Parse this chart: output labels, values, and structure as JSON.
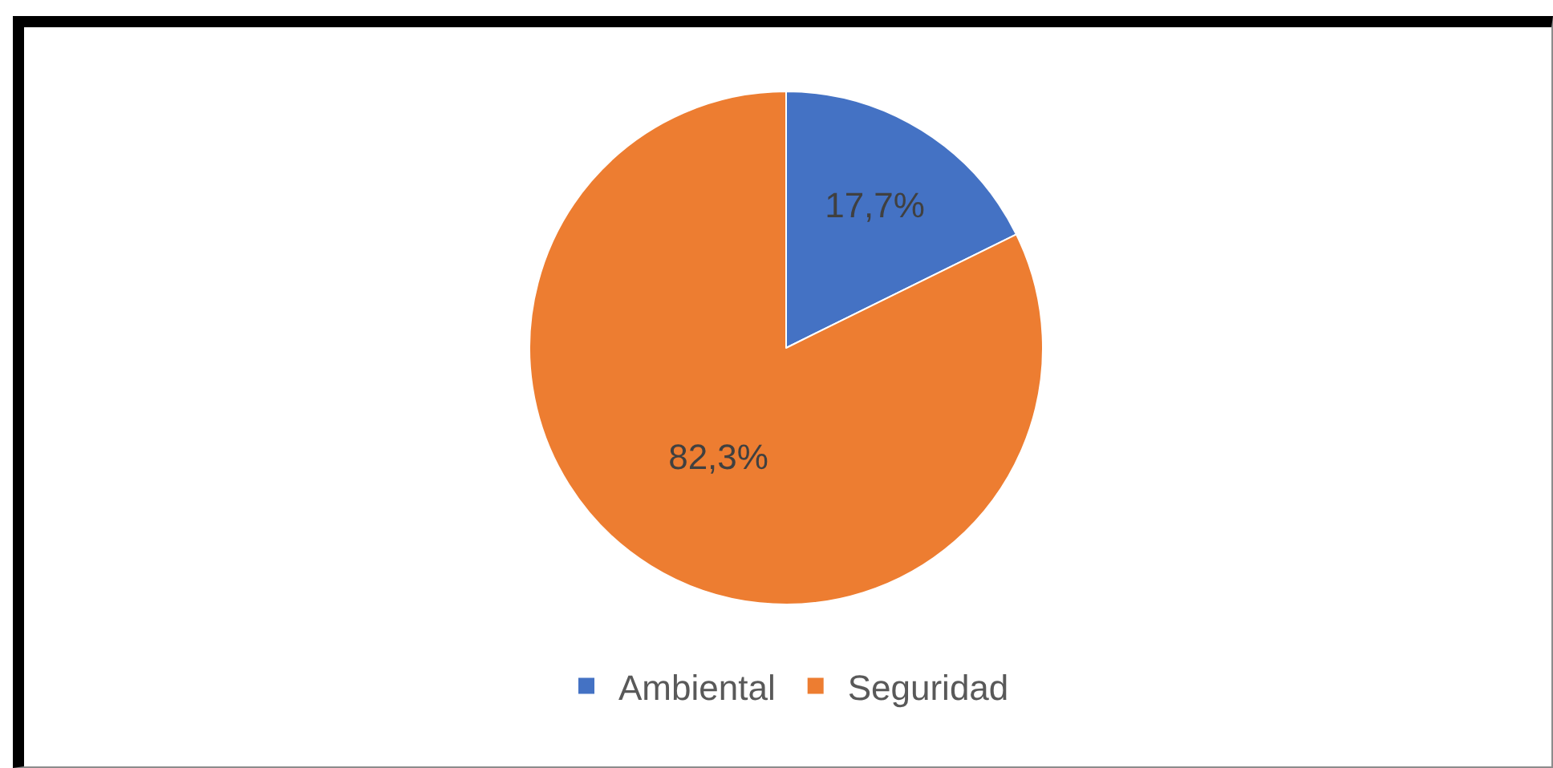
{
  "chart_data": {
    "type": "pie",
    "categories": [
      "Ambiental",
      "Seguridad"
    ],
    "values": [
      17.7,
      82.3
    ],
    "colors": [
      "#4472c4",
      "#ed7d31"
    ],
    "value_labels": [
      "17,7%",
      "82,3%"
    ],
    "legend": "bottom"
  }
}
